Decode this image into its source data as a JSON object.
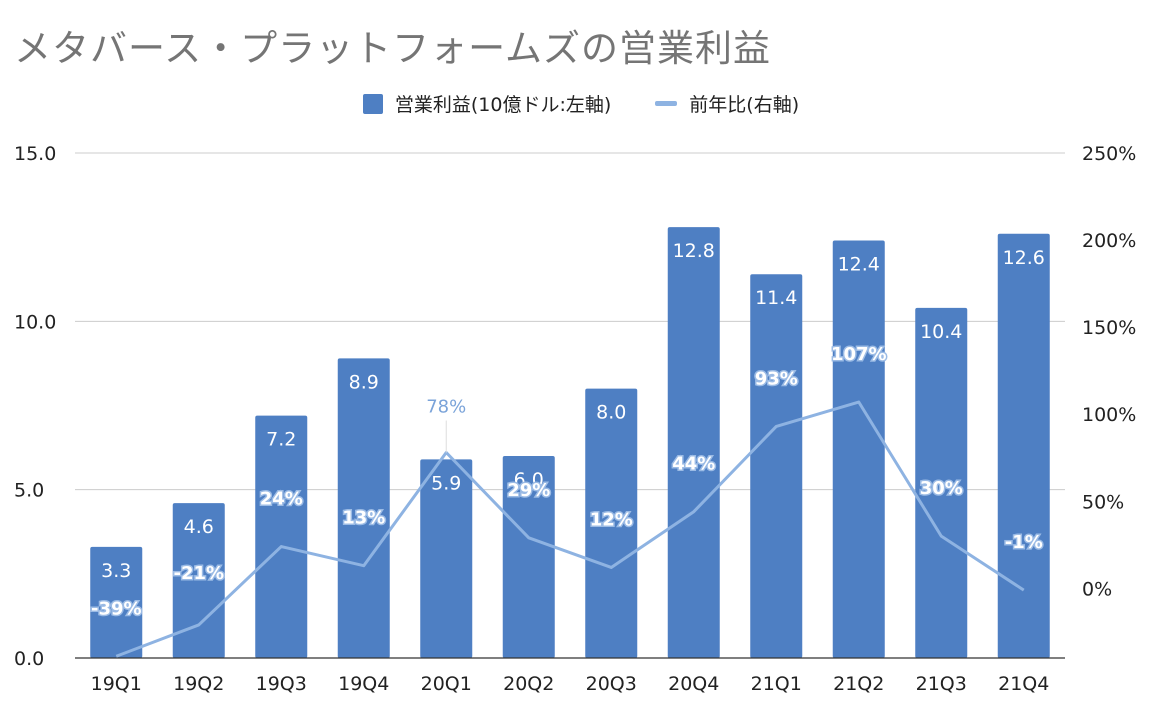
{
  "title": "メタバース・プラットフォームズの営業利益",
  "legend": {
    "bar_label": "営業利益(10億ドル:左軸)",
    "line_label": "前年比(右軸)"
  },
  "colors": {
    "bar": "#4e7fc3",
    "line": "#8eb3e2",
    "grid": "#cccccc",
    "axis": "#333333"
  },
  "chart_data": {
    "type": "bar",
    "title": "メタバース・プラットフォームズの営業利益",
    "categories": [
      "19Q1",
      "19Q2",
      "19Q3",
      "19Q4",
      "20Q1",
      "20Q2",
      "20Q3",
      "20Q4",
      "21Q1",
      "21Q2",
      "21Q3",
      "21Q4"
    ],
    "series": [
      {
        "name": "営業利益(10億ドル:左軸)",
        "type": "bar",
        "axis": "left",
        "values": [
          3.3,
          4.6,
          7.2,
          8.9,
          5.9,
          6.0,
          8.0,
          12.8,
          11.4,
          12.4,
          10.4,
          12.6
        ],
        "labels": [
          "3.3",
          "4.6",
          "7.2",
          "8.9",
          "5.9",
          "6.0",
          "8.0",
          "12.8",
          "11.4",
          "12.4",
          "10.4",
          "12.6"
        ]
      },
      {
        "name": "前年比(右軸)",
        "type": "line",
        "axis": "right",
        "values": [
          -39,
          -21,
          24,
          13,
          78,
          29,
          12,
          44,
          93,
          107,
          30,
          -1
        ],
        "labels": [
          "-39%",
          "-21%",
          "24%",
          "13%",
          "78%",
          "29%",
          "12%",
          "44%",
          "93%",
          "107%",
          "30%",
          "-1%"
        ]
      }
    ],
    "y_left": {
      "ticks": [
        "0.0",
        "5.0",
        "10.0",
        "15.0"
      ],
      "tick_values": [
        0,
        5,
        10,
        15
      ],
      "ylim": [
        0,
        15
      ]
    },
    "y_right": {
      "ticks": [
        "0%",
        "50%",
        "100%",
        "150%",
        "200%",
        "250%"
      ],
      "tick_values": [
        0,
        50,
        100,
        150,
        200,
        250
      ],
      "ylim": [
        -40,
        250
      ]
    },
    "grid": true,
    "legend_position": "top-center"
  }
}
